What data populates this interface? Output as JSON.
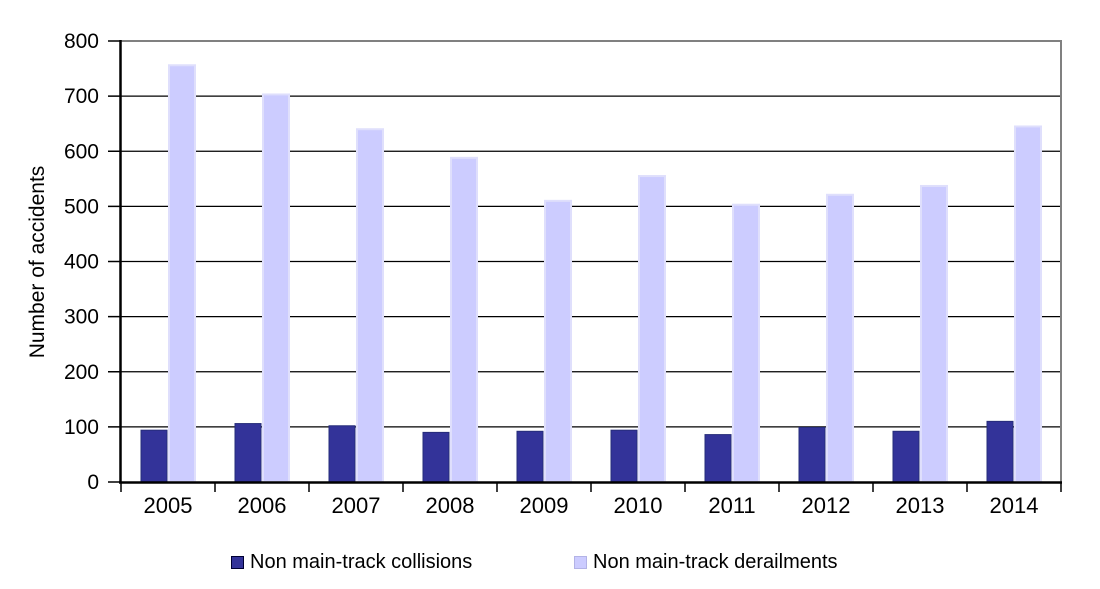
{
  "chart_data": {
    "type": "bar",
    "title": "",
    "xlabel": "",
    "ylabel": "Number of accidents",
    "categories": [
      "2005",
      "2006",
      "2007",
      "2008",
      "2009",
      "2010",
      "2011",
      "2012",
      "2013",
      "2014"
    ],
    "series": [
      {
        "key": "collisions",
        "name": "Non main-track collisions",
        "color": "#333399",
        "border_color": "#262c7a",
        "values": [
          94,
          106,
          102,
          90,
          92,
          94,
          86,
          99,
          92,
          110
        ]
      },
      {
        "key": "derailments",
        "name": "Non main-track derailments",
        "color": "#ccccff",
        "border_color": "#dfdffc",
        "values": [
          756,
          703,
          640,
          588,
          510,
          555,
          503,
          521,
          537,
          645
        ]
      }
    ],
    "ylim": [
      0,
      800
    ],
    "y_ticks": [
      0,
      100,
      200,
      300,
      400,
      500,
      600,
      700,
      800
    ],
    "grid": "horizontal",
    "legend_position": "bottom"
  },
  "colors": {
    "gridline": "#000000",
    "axis": "#000000",
    "plot_border": "#808080",
    "background": "#ffffff",
    "text": "#000000"
  }
}
